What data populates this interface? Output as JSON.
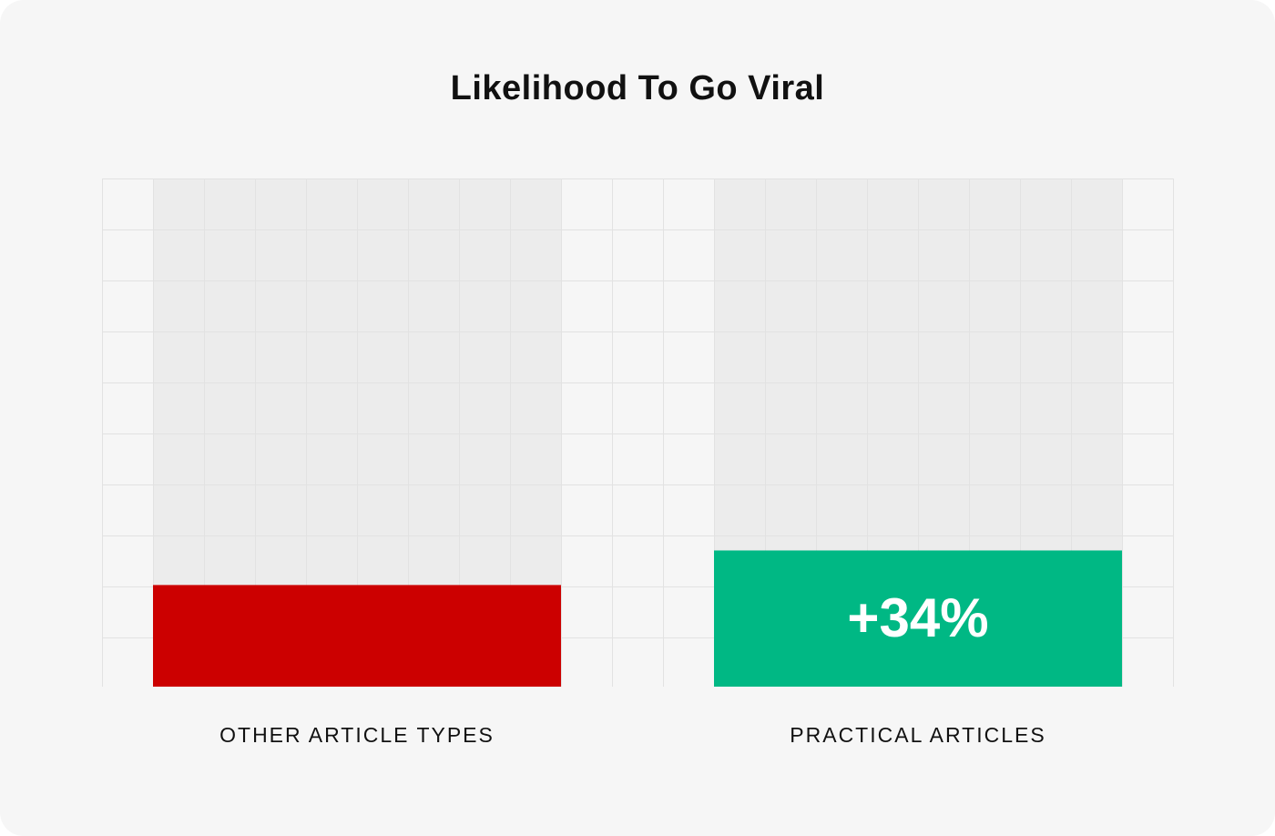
{
  "chart_data": {
    "type": "bar",
    "title": "Likelihood To Go Viral",
    "xlabel": "",
    "ylabel": "",
    "categories": [
      "OTHER ARTICLE TYPES",
      "PRACTICAL ARTICLES"
    ],
    "values": [
      100,
      134
    ],
    "ylim": [
      0,
      500
    ],
    "data_labels": [
      "",
      "+34%"
    ],
    "grid": true,
    "legend": "none",
    "colors": {
      "bars": [
        "#cc0000",
        "#00b884"
      ],
      "track": "#ececec",
      "grid": "#e2e2e2",
      "background": "#f6f6f6"
    }
  }
}
